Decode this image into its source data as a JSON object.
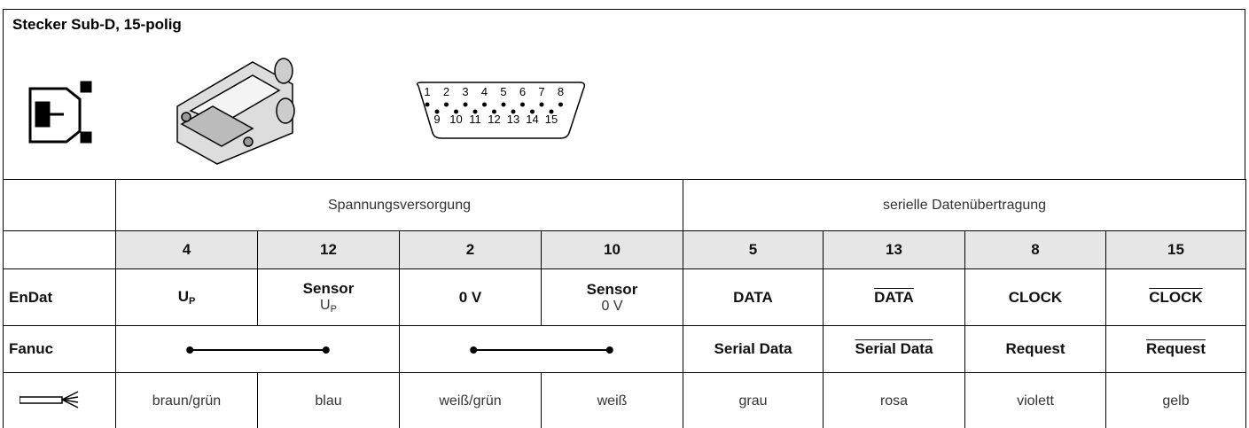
{
  "header": {
    "title": "Stecker Sub-D, 15-polig"
  },
  "connector_pins": {
    "top": [
      "1",
      "2",
      "3",
      "4",
      "5",
      "6",
      "7",
      "8"
    ],
    "bottom": [
      "9",
      "10",
      "11",
      "12",
      "13",
      "14",
      "15"
    ]
  },
  "table": {
    "groups": [
      "Spannungsversorgung",
      "serielle Datenübertragung"
    ],
    "pins": [
      "4",
      "12",
      "2",
      "10",
      "5",
      "13",
      "8",
      "15"
    ],
    "endat": {
      "label": "EnDat",
      "cells": [
        {
          "main": "U",
          "sub": "P"
        },
        {
          "main": "Sensor",
          "line2": "U",
          "line2_sub": "P"
        },
        {
          "main": "0 V"
        },
        {
          "main": "Sensor",
          "line2": "0 V"
        },
        {
          "main": "DATA"
        },
        {
          "main": "DATA",
          "overline": true
        },
        {
          "main": "CLOCK"
        },
        {
          "main": "CLOCK",
          "overline": true
        }
      ]
    },
    "fanuc": {
      "label": "Fanuc",
      "cells": [
        {
          "main": "Serial Data"
        },
        {
          "main": "Serial Data",
          "overline": true
        },
        {
          "main": "Request"
        },
        {
          "main": "Request",
          "overline": true
        }
      ]
    },
    "cable": [
      "braun/grün",
      "blau",
      "weiß/grün",
      "weiß",
      "grau",
      "rosa",
      "violett",
      "gelb"
    ]
  }
}
